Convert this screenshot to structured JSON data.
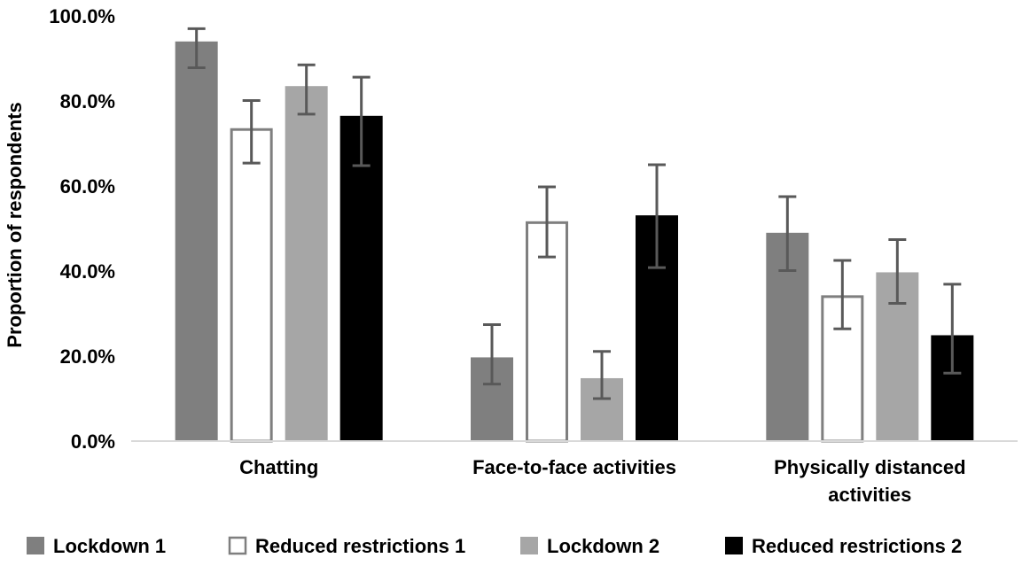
{
  "chart_data": {
    "type": "bar",
    "title": "",
    "xlabel": "",
    "ylabel": "Proportion of respondents",
    "ylim": [
      0,
      100
    ],
    "yticks": [
      0,
      20,
      40,
      60,
      80,
      100
    ],
    "ytick_labels": [
      "0.0%",
      "20.0%",
      "40.0%",
      "60.0%",
      "80.0%",
      "100.0%"
    ],
    "grid": false,
    "legend_position": "bottom",
    "categories": [
      [
        "Chatting"
      ],
      [
        "Face-to-face activities"
      ],
      [
        "Physically distanced",
        "activities"
      ]
    ],
    "series": [
      {
        "name": "Lockdown 1",
        "fill": "#7f7f7f",
        "stroke": "#7f7f7f",
        "values": [
          94.0,
          19.7,
          49.0
        ],
        "err_low": [
          87.8,
          13.4,
          40.1
        ],
        "err_high": [
          97.0,
          27.4,
          57.5
        ]
      },
      {
        "name": "Reduced restrictions 1",
        "fill": "#ffffff",
        "stroke": "#7f7f7f",
        "values": [
          73.6,
          51.7,
          34.3
        ],
        "err_low": [
          65.4,
          43.3,
          26.4
        ],
        "err_high": [
          80.1,
          59.8,
          42.5
        ]
      },
      {
        "name": "Lockdown 2",
        "fill": "#a6a6a6",
        "stroke": "#a6a6a6",
        "values": [
          83.5,
          14.8,
          39.7
        ],
        "err_low": [
          76.9,
          10.0,
          32.4
        ],
        "err_high": [
          88.5,
          21.1,
          47.4
        ]
      },
      {
        "name": "Reduced restrictions 2",
        "fill": "#000000",
        "stroke": "#000000",
        "values": [
          76.5,
          53.1,
          24.9
        ],
        "err_low": [
          64.8,
          40.8,
          16.0
        ],
        "err_high": [
          85.6,
          65.0,
          36.9
        ]
      }
    ],
    "error_bar_color": "#595959",
    "axis_color": "#d9d9d9"
  }
}
